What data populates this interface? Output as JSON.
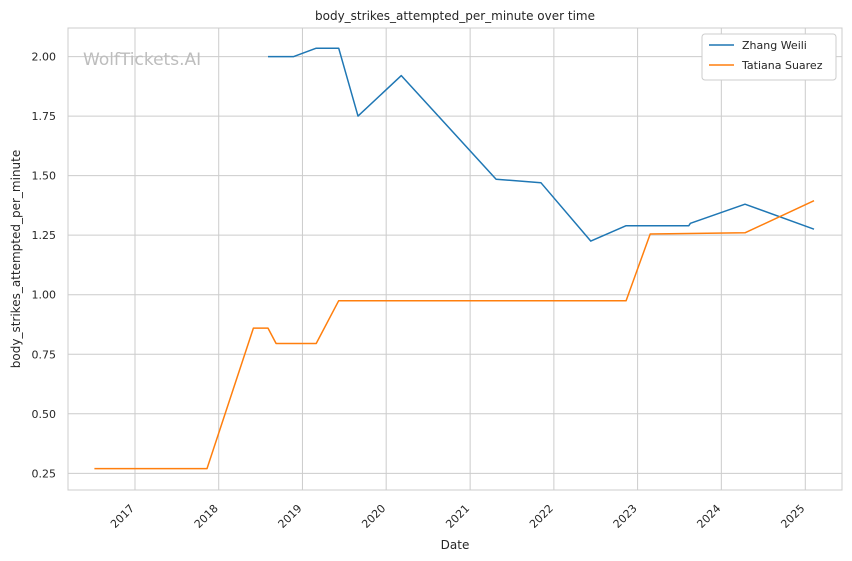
{
  "chart_data": {
    "type": "line",
    "title": "body_strikes_attempted_per_minute over time",
    "xlabel": "Date",
    "ylabel": "body_strikes_attempted_per_minute",
    "watermark": "WolfTickets.AI",
    "x_ticks": [
      "2017",
      "2018",
      "2019",
      "2020",
      "2021",
      "2022",
      "2023",
      "2024",
      "2025"
    ],
    "y_ticks": [
      "0.25",
      "0.50",
      "0.75",
      "1.00",
      "1.25",
      "1.50",
      "1.75",
      "2.00"
    ],
    "xlim": [
      "2016-03-15",
      "2025-06-10"
    ],
    "ylim": [
      0.18,
      2.12
    ],
    "grid": true,
    "legend_position": "top-right",
    "colors": {
      "Zhang Weili": "#1f77b4",
      "Tatiana Suarez": "#ff7f0e",
      "grid": "#cccccc",
      "axes": "#cccccc"
    },
    "series": [
      {
        "name": "Zhang Weili",
        "x": [
          "2018-08-04",
          "2018-11-24",
          "2019-03-02",
          "2019-06-08",
          "2019-08-31",
          "2020-03-07",
          "2021-04-24",
          "2021-11-06",
          "2022-06-11",
          "2022-11-12",
          "2023-08-12",
          "2023-08-19",
          "2024-04-13",
          "2025-02-08"
        ],
        "values": [
          2.0,
          2.0,
          2.035,
          2.035,
          1.75,
          1.92,
          1.485,
          1.47,
          1.225,
          1.29,
          1.29,
          1.3,
          1.38,
          1.275
        ]
      },
      {
        "name": "Tatiana Suarez",
        "x": [
          "2016-07-08",
          "2017-11-11",
          "2018-06-01",
          "2018-08-04",
          "2018-09-08",
          "2019-03-02",
          "2019-06-08",
          "2022-11-12",
          "2023-02-25",
          "2024-04-13",
          "2025-02-08"
        ],
        "values": [
          0.27,
          0.27,
          0.86,
          0.86,
          0.795,
          0.795,
          0.975,
          0.975,
          1.255,
          1.26,
          1.395
        ]
      }
    ]
  }
}
